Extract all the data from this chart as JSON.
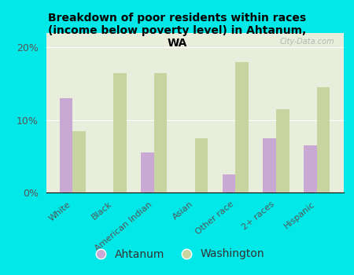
{
  "title": "Breakdown of poor residents within races\n(income below poverty level) in Ahtanum,\nWA",
  "categories": [
    "White",
    "Black",
    "American Indian",
    "Asian",
    "Other race",
    "2+ races",
    "Hispanic"
  ],
  "ahtanum": [
    13.0,
    0.0,
    5.5,
    0.0,
    2.5,
    7.5,
    6.5
  ],
  "washington": [
    8.5,
    16.5,
    16.5,
    7.5,
    18.0,
    11.5,
    14.5
  ],
  "ahtanum_color": "#c9a8d4",
  "washington_color": "#c8d4a0",
  "background_color": "#00e8e8",
  "plot_bg_top": "#e8eddc",
  "plot_bg_bottom": "#f5f7ee",
  "ylim": [
    0,
    22
  ],
  "yticks": [
    0,
    10,
    20
  ],
  "ytick_labels": [
    "0%",
    "10%",
    "20%"
  ],
  "watermark": "City-Data.com",
  "legend_ahtanum": "Ahtanum",
  "legend_washington": "Washington",
  "bar_width": 0.32
}
